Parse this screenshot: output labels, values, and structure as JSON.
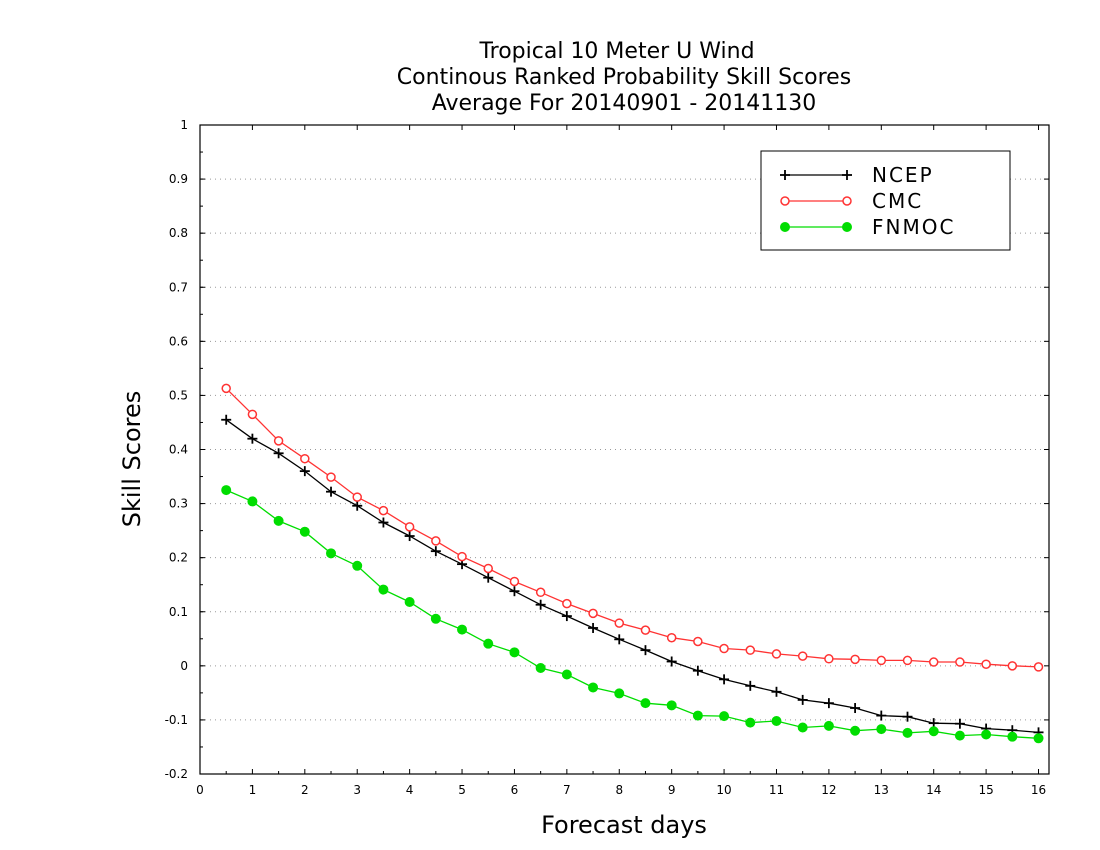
{
  "chart_data": {
    "type": "line",
    "title": [
      "Tropical 10 Meter U Wind",
      "Continous Ranked Probability Skill Scores",
      "Average For 20140901 - 20141130"
    ],
    "xlabel": "Forecast days",
    "ylabel": "Skill Scores",
    "xlim": [
      0,
      16.2
    ],
    "ylim": [
      -0.2,
      1
    ],
    "x_ticks": [
      0,
      1,
      2,
      3,
      4,
      5,
      6,
      7,
      8,
      9,
      10,
      11,
      12,
      13,
      14,
      15,
      16
    ],
    "y_ticks": [
      -0.2,
      -0.1,
      0,
      0.1,
      0.2,
      0.3,
      0.4,
      0.5,
      0.6,
      0.7,
      0.8,
      0.9,
      1
    ],
    "y_tick_labels": [
      "-0.2",
      "-0.1",
      "0",
      "0.1",
      "0.2",
      "0.3",
      "0.4",
      "0.5",
      "0.6",
      "0.7",
      "0.8",
      "0.9",
      "1"
    ],
    "grid": "horizontal dotted",
    "legend_position": "top-right",
    "x": [
      0.5,
      1,
      1.5,
      2,
      2.5,
      3,
      3.5,
      4,
      4.5,
      5,
      5.5,
      6,
      6.5,
      7,
      7.5,
      8,
      8.5,
      9,
      9.5,
      10,
      10.5,
      11,
      11.5,
      12,
      12.5,
      13,
      13.5,
      14,
      14.5,
      15,
      15.5,
      16
    ],
    "series": [
      {
        "name": "NCEP",
        "color": "#000000",
        "marker": "plus",
        "values": [
          0.455,
          0.42,
          0.393,
          0.36,
          0.322,
          0.296,
          0.265,
          0.24,
          0.212,
          0.188,
          0.163,
          0.138,
          0.113,
          0.092,
          0.07,
          0.049,
          0.029,
          0.008,
          -0.009,
          -0.025,
          -0.037,
          -0.048,
          -0.063,
          -0.069,
          -0.078,
          -0.092,
          -0.094,
          -0.106,
          -0.107,
          -0.116,
          -0.119,
          -0.123
        ]
      },
      {
        "name": "CMC",
        "color": "#ff3333",
        "marker": "open-circle",
        "values": [
          0.513,
          0.465,
          0.416,
          0.383,
          0.349,
          0.312,
          0.287,
          0.257,
          0.231,
          0.202,
          0.18,
          0.156,
          0.136,
          0.115,
          0.097,
          0.079,
          0.066,
          0.052,
          0.045,
          0.032,
          0.029,
          0.022,
          0.018,
          0.013,
          0.012,
          0.01,
          0.01,
          0.007,
          0.007,
          0.003,
          0.0,
          -0.002
        ]
      },
      {
        "name": "FNMOC",
        "color": "#00dd00",
        "marker": "filled-circle",
        "values": [
          0.325,
          0.304,
          0.268,
          0.248,
          0.208,
          0.185,
          0.141,
          0.118,
          0.087,
          0.067,
          0.041,
          0.025,
          -0.004,
          -0.016,
          -0.04,
          -0.051,
          -0.069,
          -0.073,
          -0.092,
          -0.093,
          -0.105,
          -0.102,
          -0.114,
          -0.111,
          -0.12,
          -0.117,
          -0.124,
          -0.121,
          -0.129,
          -0.127,
          -0.131,
          -0.134
        ]
      }
    ]
  }
}
